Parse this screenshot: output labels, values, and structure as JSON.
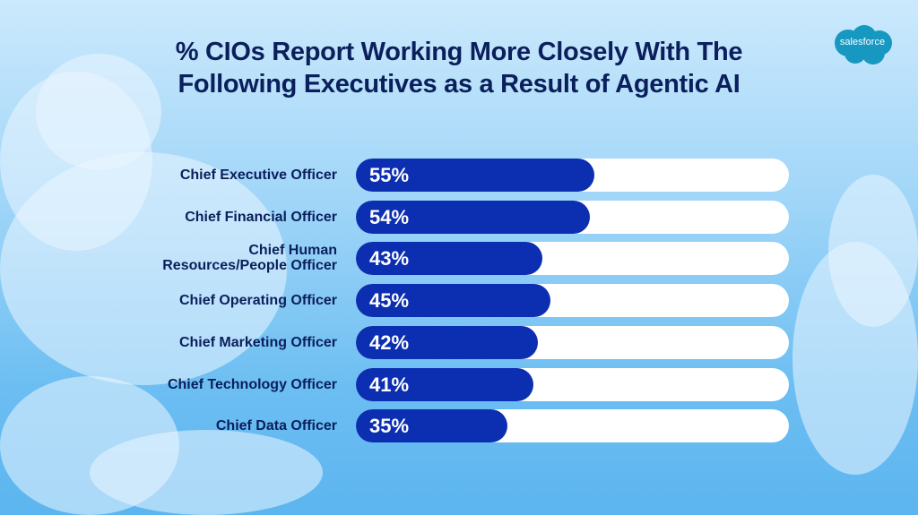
{
  "logo": {
    "text": "salesforce",
    "color": "#1798c1"
  },
  "chart_data": {
    "type": "bar",
    "orientation": "horizontal",
    "title": "% CIOs Report Working More Closely With The Following Executives as a Result of Agentic AI",
    "categories": [
      "Chief Executive Officer",
      "Chief Financial Officer",
      "Chief Human Resources/People Officer",
      "Chief Operating Officer",
      "Chief Marketing Officer",
      "Chief Technology Officer",
      "Chief Data Officer"
    ],
    "values": [
      55,
      54,
      43,
      45,
      42,
      41,
      35
    ],
    "data_labels": [
      "55%",
      "54%",
      "43%",
      "45%",
      "42%",
      "41%",
      "35%"
    ],
    "xlim": [
      0,
      100
    ],
    "grid": false,
    "bar_color": "#0b2fb0",
    "track_color": "#ffffff"
  }
}
